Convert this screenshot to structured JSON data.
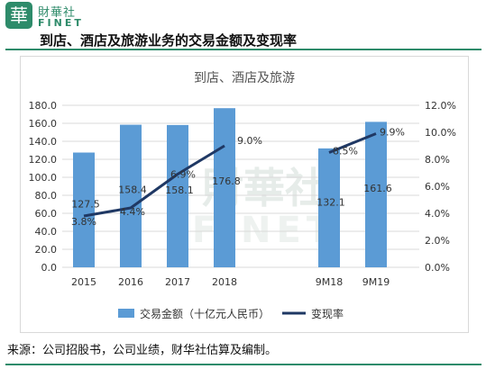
{
  "brand": {
    "badge_char": "華",
    "name_cn": "財華社",
    "name_en": "FINET",
    "accent_color": "#2e8b6a"
  },
  "headline": "到店、酒店及旅游业务的交易金额及变现率",
  "source_note": "来源：公司招股书，公司业绩，财华社估算及编制。",
  "chart_data": {
    "type": "bar",
    "title": "到店、酒店及旅游",
    "categories": [
      "2015",
      "2016",
      "2017",
      "2018",
      "9M18",
      "9M19"
    ],
    "series": [
      {
        "name": "交易金额（十亿元人民币）",
        "type": "bar",
        "axis": "left",
        "color": "#5b9bd5",
        "values": [
          127.5,
          158.4,
          158.1,
          176.8,
          132.1,
          161.6
        ],
        "labels": [
          "127.5",
          "158.4",
          "158.1",
          "176.8",
          "132.1",
          "161.6"
        ]
      },
      {
        "name": "变现率",
        "type": "line",
        "axis": "right",
        "color": "#1f3864",
        "segments": [
          [
            0,
            1,
            2,
            3
          ],
          [
            4,
            5
          ]
        ],
        "values": [
          3.8,
          4.4,
          6.9,
          9.0,
          8.5,
          9.9
        ],
        "labels": [
          "3.8%",
          "4.4%",
          "6.9%",
          "9.0%",
          "8.5%",
          "9.9%"
        ]
      }
    ],
    "y_left": {
      "min": 0,
      "max": 180,
      "ticks": [
        "0.0",
        "20.0",
        "40.0",
        "60.0",
        "80.0",
        "100.0",
        "120.0",
        "140.0",
        "160.0",
        "180.0"
      ]
    },
    "y_right": {
      "min": 0,
      "max": 12,
      "ticks": [
        "0.0%",
        "2.0%",
        "4.0%",
        "6.0%",
        "8.0%",
        "10.0%",
        "12.0%"
      ]
    },
    "legend_position": "bottom",
    "grid": true,
    "watermark": "財華社 FINET"
  }
}
